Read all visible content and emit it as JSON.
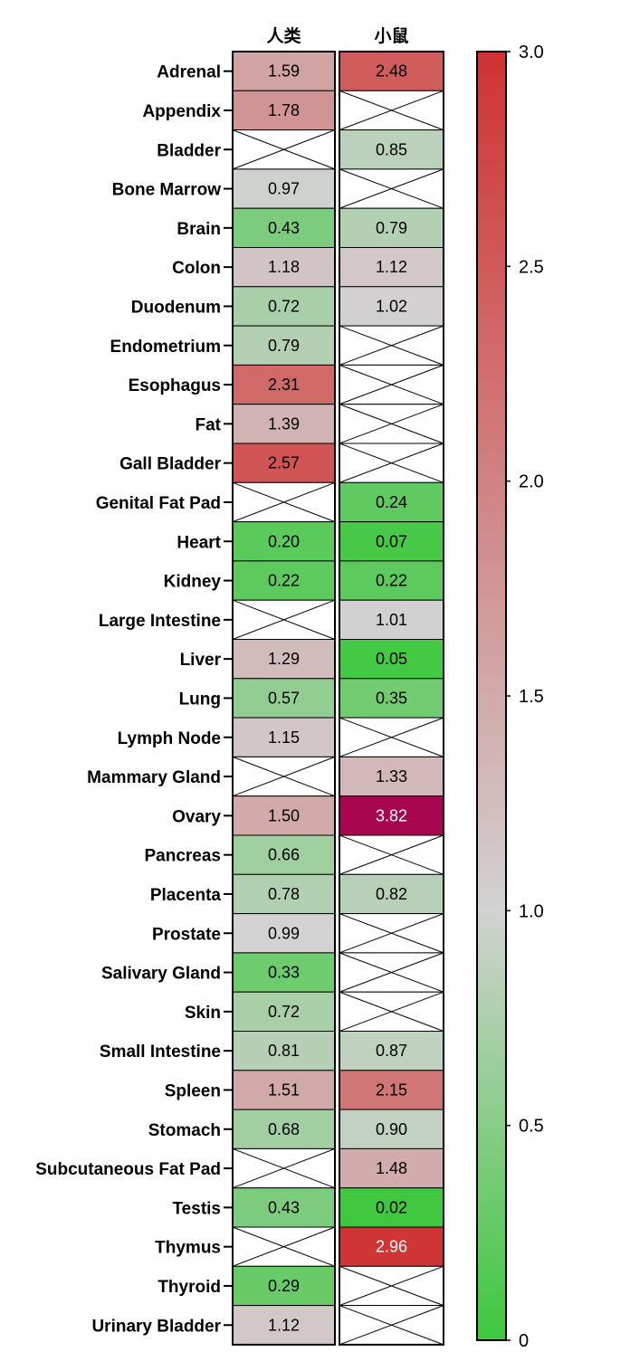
{
  "chart_data": {
    "type": "heatmap",
    "columns": [
      "人类",
      "小鼠"
    ],
    "rows": [
      "Adrenal",
      "Appendix",
      "Bladder",
      "Bone Marrow",
      "Brain",
      "Colon",
      "Duodenum",
      "Endometrium",
      "Esophagus",
      "Fat",
      "Gall Bladder",
      "Genital Fat Pad",
      "Heart",
      "Kidney",
      "Large Intestine",
      "Liver",
      "Lung",
      "Lymph Node",
      "Mammary Gland",
      "Ovary",
      "Pancreas",
      "Placenta",
      "Prostate",
      "Salivary Gland",
      "Skin",
      "Small Intestine",
      "Spleen",
      "Stomach",
      "Subcutaneous Fat Pad",
      "Testis",
      "Thymus",
      "Thyroid",
      "Urinary Bladder"
    ],
    "values": [
      [
        "1.59",
        "2.48"
      ],
      [
        "1.78",
        null
      ],
      [
        null,
        "0.85"
      ],
      [
        "0.97",
        null
      ],
      [
        "0.43",
        "0.79"
      ],
      [
        "1.18",
        "1.12"
      ],
      [
        "0.72",
        "1.02"
      ],
      [
        "0.79",
        null
      ],
      [
        "2.31",
        null
      ],
      [
        "1.39",
        null
      ],
      [
        "2.57",
        null
      ],
      [
        null,
        "0.24"
      ],
      [
        "0.20",
        "0.07"
      ],
      [
        "0.22",
        "0.22"
      ],
      [
        null,
        "1.01"
      ],
      [
        "1.29",
        "0.05"
      ],
      [
        "0.57",
        "0.35"
      ],
      [
        "1.15",
        null
      ],
      [
        null,
        "1.33"
      ],
      [
        "1.50",
        "3.82"
      ],
      [
        "0.66",
        null
      ],
      [
        "0.78",
        "0.82"
      ],
      [
        "0.99",
        null
      ],
      [
        "0.33",
        null
      ],
      [
        "0.72",
        null
      ],
      [
        "0.81",
        "0.87"
      ],
      [
        "1.51",
        "2.15"
      ],
      [
        "0.68",
        "0.90"
      ],
      [
        null,
        "1.48"
      ],
      [
        "0.43",
        "0.02"
      ],
      [
        null,
        "2.96"
      ],
      [
        "0.29",
        null
      ],
      [
        "1.12",
        null
      ]
    ],
    "missing_marker": "crossed-out cell",
    "colorbar": {
      "range": [
        0,
        3.0
      ],
      "ticks": [
        "0",
        "0.5",
        "1.0",
        "1.5",
        "2.0",
        "2.5",
        "3.0"
      ],
      "colors": {
        "low": "#3cc83c",
        "mid": "#d2d2d2",
        "high": "#d03232",
        "over": "#a8064e"
      }
    }
  }
}
